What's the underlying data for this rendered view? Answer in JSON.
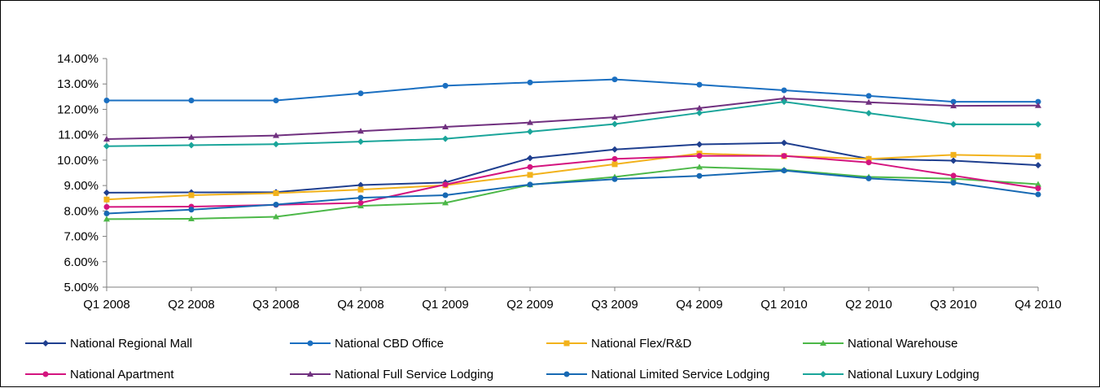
{
  "chart_data": {
    "type": "line",
    "title": "",
    "xlabel": "",
    "ylabel": "",
    "categories": [
      "Q1 2008",
      "Q2 2008",
      "Q3 2008",
      "Q4 2008",
      "Q1 2009",
      "Q2 2009",
      "Q3 2009",
      "Q4 2009",
      "Q1 2010",
      "Q2 2010",
      "Q3 2010",
      "Q4 2010"
    ],
    "ylim": [
      5,
      14
    ],
    "yticks": [
      "5.00%",
      "6.00%",
      "7.00%",
      "8.00%",
      "9.00%",
      "10.00%",
      "11.00%",
      "12.00%",
      "13.00%",
      "14.00%"
    ],
    "grid": false,
    "legend_position": "bottom",
    "series": [
      {
        "name": "National Regional Mall",
        "color": "#1f3f8f",
        "marker": "diamond",
        "values": [
          8.72,
          8.73,
          8.74,
          9.02,
          9.12,
          10.08,
          10.42,
          10.62,
          10.68,
          10.05,
          9.98,
          9.8
        ]
      },
      {
        "name": "National CBD Office",
        "color": "#1a6fc1",
        "marker": "circle",
        "values": [
          12.35,
          12.35,
          12.35,
          12.63,
          12.93,
          13.06,
          13.18,
          12.97,
          12.75,
          12.53,
          12.3,
          12.3
        ]
      },
      {
        "name": "National Flex/R&D",
        "color": "#f2b21b",
        "marker": "square",
        "values": [
          8.45,
          8.62,
          8.7,
          8.84,
          9.01,
          9.42,
          9.84,
          10.26,
          10.16,
          10.05,
          10.21,
          10.15
        ]
      },
      {
        "name": "National Warehouse",
        "color": "#4cb848",
        "marker": "triangle",
        "values": [
          7.68,
          7.69,
          7.77,
          8.2,
          8.32,
          9.03,
          9.34,
          9.73,
          9.62,
          9.34,
          9.27,
          9.05
        ]
      },
      {
        "name": "National Apartment",
        "color": "#d4147f",
        "marker": "circle",
        "values": [
          8.16,
          8.17,
          8.24,
          8.32,
          9.04,
          9.73,
          10.05,
          10.17,
          10.17,
          9.91,
          9.39,
          8.89
        ]
      },
      {
        "name": "National Full Service Lodging",
        "color": "#70307f",
        "marker": "triangle",
        "values": [
          10.83,
          10.9,
          10.97,
          11.14,
          11.31,
          11.48,
          11.69,
          12.05,
          12.43,
          12.28,
          12.14,
          12.15
        ]
      },
      {
        "name": "National Limited Service Lodging",
        "color": "#1769b3",
        "marker": "circle",
        "values": [
          7.9,
          8.05,
          8.25,
          8.52,
          8.62,
          9.04,
          9.25,
          9.38,
          9.59,
          9.28,
          9.11,
          8.65
        ]
      },
      {
        "name": "National Luxury Lodging",
        "color": "#1aa59a",
        "marker": "diamond",
        "values": [
          10.55,
          10.59,
          10.63,
          10.73,
          10.84,
          11.12,
          11.42,
          11.86,
          12.3,
          11.85,
          11.41,
          11.41
        ]
      }
    ]
  }
}
